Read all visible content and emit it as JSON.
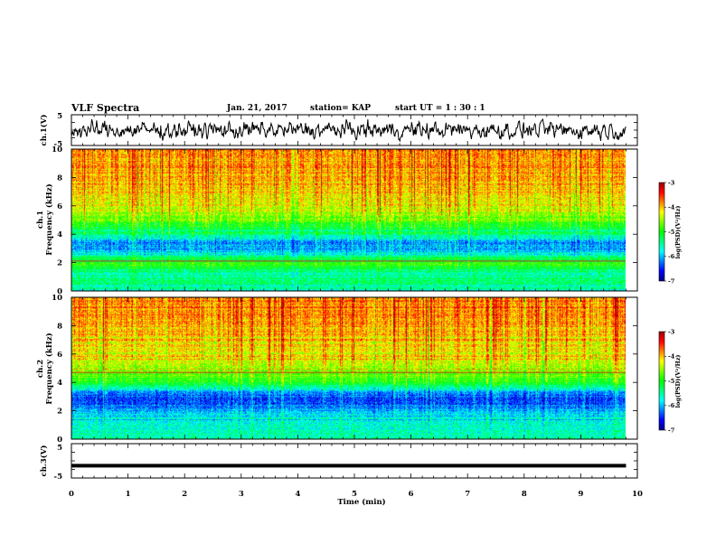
{
  "header": {
    "title": "VLF Spectra",
    "date": "Jan. 21, 2017",
    "station": "station= KAP",
    "start": "start  UT =  1 : 30 : 1"
  },
  "chart_data": [
    {
      "type": "line",
      "panel": "ch.1 waveform",
      "ylabel": "ch.1(V)",
      "ylim": [
        -5,
        5
      ],
      "yticks": [
        "5",
        "-5"
      ],
      "xlim": [
        0,
        10
      ],
      "series": [
        {
          "values_range": [
            -3.5,
            3.5
          ],
          "x_end": 9.8
        }
      ]
    },
    {
      "type": "heatmap",
      "panel": "ch.1 spectrogram",
      "ylabel_lines": [
        "ch.1",
        "Frequency (kHz)"
      ],
      "ylim": [
        0,
        10
      ],
      "yticks": [
        "0",
        "2",
        "4",
        "6",
        "8",
        "10"
      ],
      "xlim": [
        0,
        10
      ],
      "x_end": 9.8,
      "colorbar": {
        "range": [
          -7,
          -3
        ],
        "ticks": [
          "-3",
          "-4",
          "-5",
          "-6",
          "-7"
        ],
        "label": "log(PSD)(V²/Hz)"
      },
      "profile_log_psd": [
        {
          "freq_khz": 0.0,
          "value": -5.6
        },
        {
          "freq_khz": 0.6,
          "value": -5.3
        },
        {
          "freq_khz": 1.2,
          "value": -5.5
        },
        {
          "freq_khz": 1.8,
          "value": -5.0
        },
        {
          "freq_khz": 2.2,
          "value": -5.2
        },
        {
          "freq_khz": 2.8,
          "value": -6.0
        },
        {
          "freq_khz": 3.4,
          "value": -6.2
        },
        {
          "freq_khz": 4.0,
          "value": -5.4
        },
        {
          "freq_khz": 4.6,
          "value": -5.1
        },
        {
          "freq_khz": 5.2,
          "value": -4.6
        },
        {
          "freq_khz": 6.0,
          "value": -4.3
        },
        {
          "freq_khz": 7.0,
          "value": -4.1
        },
        {
          "freq_khz": 8.0,
          "value": -3.95
        },
        {
          "freq_khz": 10.0,
          "value": -3.85
        }
      ],
      "tone_lines_khz": [
        2.1
      ]
    },
    {
      "type": "heatmap",
      "panel": "ch.2 spectrogram",
      "ylabel_lines": [
        "ch.2",
        "Frequency (kHz)"
      ],
      "ylim": [
        0,
        10
      ],
      "yticks": [
        "0",
        "2",
        "4",
        "6",
        "8",
        "10"
      ],
      "xlim": [
        0,
        10
      ],
      "x_end": 9.8,
      "colorbar": {
        "range": [
          -7,
          -3
        ],
        "ticks": [
          "-3",
          "-4",
          "-5",
          "-6",
          "-7"
        ],
        "label": "log(PSD)(V²/Hz)"
      },
      "profile_log_psd": [
        {
          "freq_khz": 0.0,
          "value": -5.5
        },
        {
          "freq_khz": 0.6,
          "value": -5.6
        },
        {
          "freq_khz": 1.2,
          "value": -5.7
        },
        {
          "freq_khz": 2.0,
          "value": -6.0
        },
        {
          "freq_khz": 2.6,
          "value": -6.4
        },
        {
          "freq_khz": 3.2,
          "value": -6.3
        },
        {
          "freq_khz": 3.8,
          "value": -5.2
        },
        {
          "freq_khz": 4.6,
          "value": -4.7
        },
        {
          "freq_khz": 5.4,
          "value": -4.4
        },
        {
          "freq_khz": 6.5,
          "value": -4.1
        },
        {
          "freq_khz": 8.0,
          "value": -3.9
        },
        {
          "freq_khz": 10.0,
          "value": -3.8
        }
      ],
      "tone_lines_khz": [
        4.7
      ]
    },
    {
      "type": "line",
      "panel": "ch.3 waveform",
      "ylabel": "ch.3(V)",
      "ylim": [
        -5,
        5
      ],
      "yticks": [
        "5",
        "-5"
      ],
      "xlim": [
        0,
        10
      ],
      "series": [
        {
          "values_range": [
            -1.5,
            -1.3
          ],
          "x_end": 9.8
        }
      ]
    }
  ],
  "x_axis": {
    "label": "Time (min)",
    "ticks": [
      "0",
      "1",
      "2",
      "3",
      "4",
      "5",
      "6",
      "7",
      "8",
      "9",
      "10"
    ]
  },
  "colormap": [
    "#000080",
    "#0000ff",
    "#0080ff",
    "#00ffff",
    "#00ff80",
    "#00ff00",
    "#80ff00",
    "#ffff00",
    "#ff8000",
    "#ff0000",
    "#a00000"
  ]
}
